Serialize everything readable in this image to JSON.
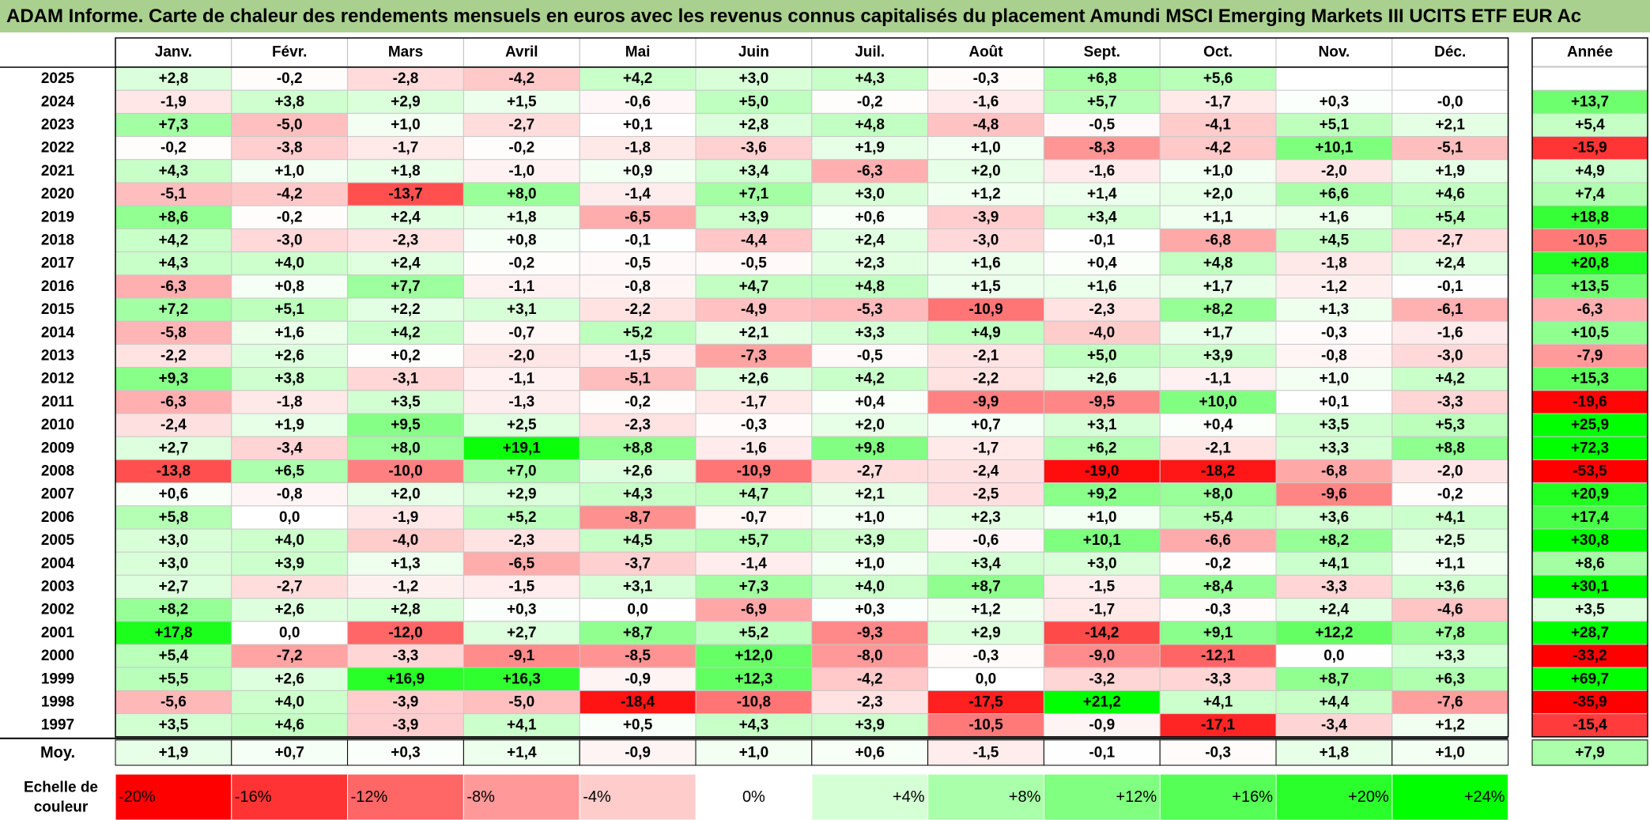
{
  "title": "ADAM Informe. Carte de chaleur des rendements mensuels en euros avec les revenus connus capitalisés du placement Amundi MSCI Emerging Markets III UCITS ETF EUR Ac",
  "chart_data": {
    "type": "heatmap",
    "title": "ADAM Informe. Carte de chaleur des rendements mensuels en euros avec les revenus connus capitalisés du placement Amundi MSCI Emerging Markets III UCITS ETF EUR Ac",
    "months": [
      "Janv.",
      "Févr.",
      "Mars",
      "Avril",
      "Mai",
      "Juin",
      "Juil.",
      "Août",
      "Sept.",
      "Oct.",
      "Nov.",
      "Déc."
    ],
    "year_header": "Année",
    "rows": [
      {
        "year": "2025",
        "values": [
          "+2,8",
          "-0,2",
          "-2,8",
          "-4,2",
          "+4,2",
          "+3,0",
          "+4,3",
          "-0,3",
          "+6,8",
          "+5,6",
          "",
          ""
        ],
        "annual": ""
      },
      {
        "year": "2024",
        "values": [
          "-1,9",
          "+3,8",
          "+2,9",
          "+1,5",
          "-0,6",
          "+5,0",
          "-0,2",
          "-1,6",
          "+5,7",
          "-1,7",
          "+0,3",
          "-0,0"
        ],
        "annual": "+13,7"
      },
      {
        "year": "2023",
        "values": [
          "+7,3",
          "-5,0",
          "+1,0",
          "-2,7",
          "+0,1",
          "+2,8",
          "+4,8",
          "-4,8",
          "-0,5",
          "-4,1",
          "+5,1",
          "+2,1"
        ],
        "annual": "+5,4"
      },
      {
        "year": "2022",
        "values": [
          "-0,2",
          "-3,8",
          "-1,7",
          "-0,2",
          "-1,8",
          "-3,6",
          "+1,9",
          "+1,0",
          "-8,3",
          "-4,2",
          "+10,1",
          "-5,1"
        ],
        "annual": "-15,9"
      },
      {
        "year": "2021",
        "values": [
          "+4,3",
          "+1,0",
          "+1,8",
          "-1,0",
          "+0,9",
          "+3,4",
          "-6,3",
          "+2,0",
          "-1,6",
          "+1,0",
          "-2,0",
          "+1,9"
        ],
        "annual": "+4,9"
      },
      {
        "year": "2020",
        "values": [
          "-5,1",
          "-4,2",
          "-13,7",
          "+8,0",
          "-1,4",
          "+7,1",
          "+3,0",
          "+1,2",
          "+1,4",
          "+2,0",
          "+6,6",
          "+4,6"
        ],
        "annual": "+7,4"
      },
      {
        "year": "2019",
        "values": [
          "+8,6",
          "-0,2",
          "+2,4",
          "+1,8",
          "-6,5",
          "+3,9",
          "+0,6",
          "-3,9",
          "+3,4",
          "+1,1",
          "+1,6",
          "+5,4"
        ],
        "annual": "+18,8"
      },
      {
        "year": "2018",
        "values": [
          "+4,2",
          "-3,0",
          "-2,3",
          "+0,8",
          "-0,1",
          "-4,4",
          "+2,4",
          "-3,0",
          "-0,1",
          "-6,8",
          "+4,5",
          "-2,7"
        ],
        "annual": "-10,5"
      },
      {
        "year": "2017",
        "values": [
          "+4,3",
          "+4,0",
          "+2,4",
          "-0,2",
          "-0,5",
          "-0,5",
          "+2,3",
          "+1,6",
          "+0,4",
          "+4,8",
          "-1,8",
          "+2,4"
        ],
        "annual": "+20,8"
      },
      {
        "year": "2016",
        "values": [
          "-6,3",
          "+0,8",
          "+7,7",
          "-1,1",
          "-0,8",
          "+4,7",
          "+4,8",
          "+1,5",
          "+1,6",
          "+1,7",
          "-1,2",
          "-0,1"
        ],
        "annual": "+13,5"
      },
      {
        "year": "2015",
        "values": [
          "+7,2",
          "+5,1",
          "+2,2",
          "+3,1",
          "-2,2",
          "-4,9",
          "-5,3",
          "-10,9",
          "-2,3",
          "+8,2",
          "+1,3",
          "-6,1"
        ],
        "annual": "-6,3"
      },
      {
        "year": "2014",
        "values": [
          "-5,8",
          "+1,6",
          "+4,2",
          "-0,7",
          "+5,2",
          "+2,1",
          "+3,3",
          "+4,9",
          "-4,0",
          "+1,7",
          "-0,3",
          "-1,6"
        ],
        "annual": "+10,5"
      },
      {
        "year": "2013",
        "values": [
          "-2,2",
          "+2,6",
          "+0,2",
          "-2,0",
          "-1,5",
          "-7,3",
          "-0,5",
          "-2,1",
          "+5,0",
          "+3,9",
          "-0,8",
          "-3,0"
        ],
        "annual": "-7,9"
      },
      {
        "year": "2012",
        "values": [
          "+9,3",
          "+3,8",
          "-3,1",
          "-1,1",
          "-5,1",
          "+2,6",
          "+4,2",
          "-2,2",
          "+2,6",
          "-1,1",
          "+1,0",
          "+4,2"
        ],
        "annual": "+15,3"
      },
      {
        "year": "2011",
        "values": [
          "-6,3",
          "-1,8",
          "+3,5",
          "-1,3",
          "-0,2",
          "-1,7",
          "+0,4",
          "-9,9",
          "-9,5",
          "+10,0",
          "+0,1",
          "-3,3"
        ],
        "annual": "-19,6"
      },
      {
        "year": "2010",
        "values": [
          "-2,4",
          "+1,9",
          "+9,5",
          "+2,5",
          "-2,3",
          "-0,3",
          "+2,0",
          "+0,7",
          "+3,1",
          "+0,4",
          "+3,5",
          "+5,3"
        ],
        "annual": "+25,9"
      },
      {
        "year": "2009",
        "values": [
          "+2,7",
          "-3,4",
          "+8,0",
          "+19,1",
          "+8,8",
          "-1,6",
          "+9,8",
          "-1,7",
          "+6,2",
          "-2,1",
          "+3,3",
          "+8,8"
        ],
        "annual": "+72,3"
      },
      {
        "year": "2008",
        "values": [
          "-13,8",
          "+6,5",
          "-10,0",
          "+7,0",
          "+2,6",
          "-10,9",
          "-2,7",
          "-2,4",
          "-19,0",
          "-18,2",
          "-6,8",
          "-2,0"
        ],
        "annual": "-53,5"
      },
      {
        "year": "2007",
        "values": [
          "+0,6",
          "-0,8",
          "+2,0",
          "+2,9",
          "+4,3",
          "+4,7",
          "+2,1",
          "-2,5",
          "+9,2",
          "+8,0",
          "-9,6",
          "-0,2"
        ],
        "annual": "+20,9"
      },
      {
        "year": "2006",
        "values": [
          "+5,8",
          "0,0",
          "-1,9",
          "+5,2",
          "-8,7",
          "-0,7",
          "+1,0",
          "+2,3",
          "+1,0",
          "+5,4",
          "+3,6",
          "+4,1"
        ],
        "annual": "+17,4"
      },
      {
        "year": "2005",
        "values": [
          "+3,0",
          "+4,0",
          "-4,0",
          "-2,3",
          "+4,5",
          "+5,7",
          "+3,9",
          "-0,6",
          "+10,1",
          "-6,6",
          "+8,2",
          "+2,5"
        ],
        "annual": "+30,8"
      },
      {
        "year": "2004",
        "values": [
          "+3,0",
          "+3,9",
          "+1,3",
          "-6,5",
          "-3,7",
          "-1,4",
          "+1,0",
          "+3,4",
          "+3,0",
          "-0,2",
          "+4,1",
          "+1,1"
        ],
        "annual": "+8,6"
      },
      {
        "year": "2003",
        "values": [
          "+2,7",
          "-2,7",
          "-1,2",
          "-1,5",
          "+3,1",
          "+7,3",
          "+4,0",
          "+8,7",
          "-1,5",
          "+8,4",
          "-3,3",
          "+3,6"
        ],
        "annual": "+30,1"
      },
      {
        "year": "2002",
        "values": [
          "+8,2",
          "+2,6",
          "+2,8",
          "+0,3",
          "0,0",
          "-6,9",
          "+0,3",
          "+1,2",
          "-1,7",
          "-0,3",
          "+2,4",
          "-4,6"
        ],
        "annual": "+3,5"
      },
      {
        "year": "2001",
        "values": [
          "+17,8",
          "0,0",
          "-12,0",
          "+2,7",
          "+8,7",
          "+5,2",
          "-9,3",
          "+2,9",
          "-14,2",
          "+9,1",
          "+12,2",
          "+7,8"
        ],
        "annual": "+28,7"
      },
      {
        "year": "2000",
        "values": [
          "+5,4",
          "-7,2",
          "-3,3",
          "-9,1",
          "-8,5",
          "+12,0",
          "-8,0",
          "-0,3",
          "-9,0",
          "-12,1",
          "0,0",
          "+3,3"
        ],
        "annual": "-33,2"
      },
      {
        "year": "1999",
        "values": [
          "+5,5",
          "+2,6",
          "+16,9",
          "+16,3",
          "-0,9",
          "+12,3",
          "-4,2",
          "0,0",
          "-3,2",
          "-3,3",
          "+8,7",
          "+6,3"
        ],
        "annual": "+69,7"
      },
      {
        "year": "1998",
        "values": [
          "-5,6",
          "+4,0",
          "-3,9",
          "-5,0",
          "-18,4",
          "-10,8",
          "-2,3",
          "-17,5",
          "+21,2",
          "+4,1",
          "+4,4",
          "-7,6"
        ],
        "annual": "-35,9"
      },
      {
        "year": "1997",
        "values": [
          "+3,5",
          "+4,6",
          "-3,9",
          "+4,1",
          "+0,5",
          "+4,3",
          "+3,9",
          "-10,5",
          "-0,9",
          "-17,1",
          "-3,4",
          "+1,2"
        ],
        "annual": "-15,4"
      }
    ],
    "average": {
      "label": "Moy.",
      "values": [
        "+1,9",
        "+0,7",
        "+0,3",
        "+1,4",
        "-0,9",
        "+1,0",
        "+0,6",
        "-1,5",
        "-0,1",
        "-0,3",
        "+1,8",
        "+1,0"
      ],
      "annual": "+7,9"
    },
    "scale": {
      "label_line1": "Echelle de",
      "label_line2": "couleur",
      "steps": [
        "-20%",
        "-16%",
        "-12%",
        "-8%",
        "-4%",
        "0%",
        "+4%",
        "+8%",
        "+12%",
        "+16%",
        "+20%",
        "+24%"
      ],
      "values": [
        -20,
        -16,
        -12,
        -8,
        -4,
        0,
        4,
        8,
        12,
        16,
        20,
        24
      ]
    },
    "colors": {
      "negative_max": "#ff0000",
      "neutral": "#ffffff",
      "positive_max": "#00ff00",
      "title_background": "#a9d08e"
    }
  }
}
